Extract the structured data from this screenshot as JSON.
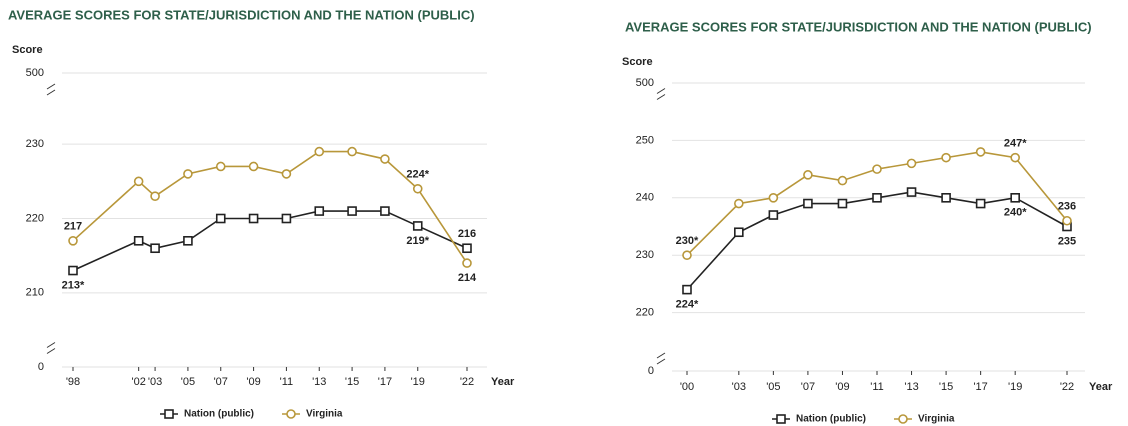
{
  "chart_data": [
    {
      "type": "line",
      "title": "AVERAGE SCORES FOR STATE/JURISDICTION AND THE NATION (PUBLIC)",
      "y_label": "Score",
      "x_label": "Year",
      "x": [
        1998,
        2002,
        2003,
        2005,
        2007,
        2009,
        2011,
        2013,
        2015,
        2017,
        2019,
        2022
      ],
      "xticks": [
        {
          "value": 1998,
          "label": "'98"
        },
        {
          "value": 2002,
          "label": "'02"
        },
        {
          "value": 2003,
          "label": "'03"
        },
        {
          "value": 2005,
          "label": "'05"
        },
        {
          "value": 2007,
          "label": "'07"
        },
        {
          "value": 2009,
          "label": "'09"
        },
        {
          "value": 2011,
          "label": "'11"
        },
        {
          "value": 2013,
          "label": "'13"
        },
        {
          "value": 2015,
          "label": "'15"
        },
        {
          "value": 2017,
          "label": "'17"
        },
        {
          "value": 2019,
          "label": "'19"
        },
        {
          "value": 2022,
          "label": "'22"
        }
      ],
      "xlim": [
        1998,
        2022
      ],
      "ylim": [
        0,
        500
      ],
      "y_axis_segments": [
        [
          0,
          0
        ],
        [
          205,
          235
        ],
        [
          500,
          500
        ]
      ],
      "yticks": [
        0,
        210,
        220,
        230,
        500
      ],
      "series": [
        {
          "name": "Nation (public)",
          "color": "#222222",
          "marker": "square",
          "values": [
            213,
            217,
            216,
            217,
            220,
            220,
            220,
            221,
            221,
            221,
            219,
            216
          ],
          "value_labels": [
            "213*",
            null,
            null,
            null,
            null,
            null,
            null,
            null,
            null,
            null,
            "219*",
            "216"
          ]
        },
        {
          "name": "Virginia",
          "color": "#b8973a",
          "marker": "circle",
          "values": [
            217,
            225,
            223,
            226,
            227,
            227,
            226,
            229,
            229,
            228,
            224,
            214
          ],
          "value_labels": [
            "217",
            null,
            null,
            null,
            null,
            null,
            null,
            null,
            null,
            null,
            "224*",
            "214"
          ]
        }
      ]
    },
    {
      "type": "line",
      "title": "AVERAGE SCORES FOR STATE/JURISDICTION AND THE NATION (PUBLIC)",
      "y_label": "Score",
      "x_label": "Year",
      "x": [
        2000,
        2003,
        2005,
        2007,
        2009,
        2011,
        2013,
        2015,
        2017,
        2019,
        2022
      ],
      "xticks": [
        {
          "value": 2000,
          "label": "'00"
        },
        {
          "value": 2003,
          "label": "'03"
        },
        {
          "value": 2005,
          "label": "'05"
        },
        {
          "value": 2007,
          "label": "'07"
        },
        {
          "value": 2009,
          "label": "'09"
        },
        {
          "value": 2011,
          "label": "'11"
        },
        {
          "value": 2013,
          "label": "'13"
        },
        {
          "value": 2015,
          "label": "'15"
        },
        {
          "value": 2017,
          "label": "'17"
        },
        {
          "value": 2019,
          "label": "'19"
        },
        {
          "value": 2022,
          "label": "'22"
        }
      ],
      "xlim": [
        2000,
        2022
      ],
      "ylim": [
        0,
        500
      ],
      "y_axis_segments": [
        [
          0,
          0
        ],
        [
          214,
          256
        ],
        [
          500,
          500
        ]
      ],
      "yticks": [
        0,
        220,
        230,
        240,
        250,
        500
      ],
      "series": [
        {
          "name": "Nation (public)",
          "color": "#222222",
          "marker": "square",
          "values": [
            224,
            234,
            237,
            239,
            239,
            240,
            241,
            240,
            239,
            240,
            235
          ],
          "value_labels": [
            "224*",
            null,
            null,
            null,
            null,
            null,
            null,
            null,
            null,
            "240*",
            "235"
          ]
        },
        {
          "name": "Virginia",
          "color": "#b8973a",
          "marker": "circle",
          "values": [
            230,
            239,
            240,
            244,
            243,
            245,
            246,
            247,
            248,
            247,
            236
          ],
          "value_labels": [
            "230*",
            null,
            null,
            null,
            null,
            null,
            null,
            null,
            null,
            "247*",
            "236"
          ]
        }
      ]
    }
  ]
}
